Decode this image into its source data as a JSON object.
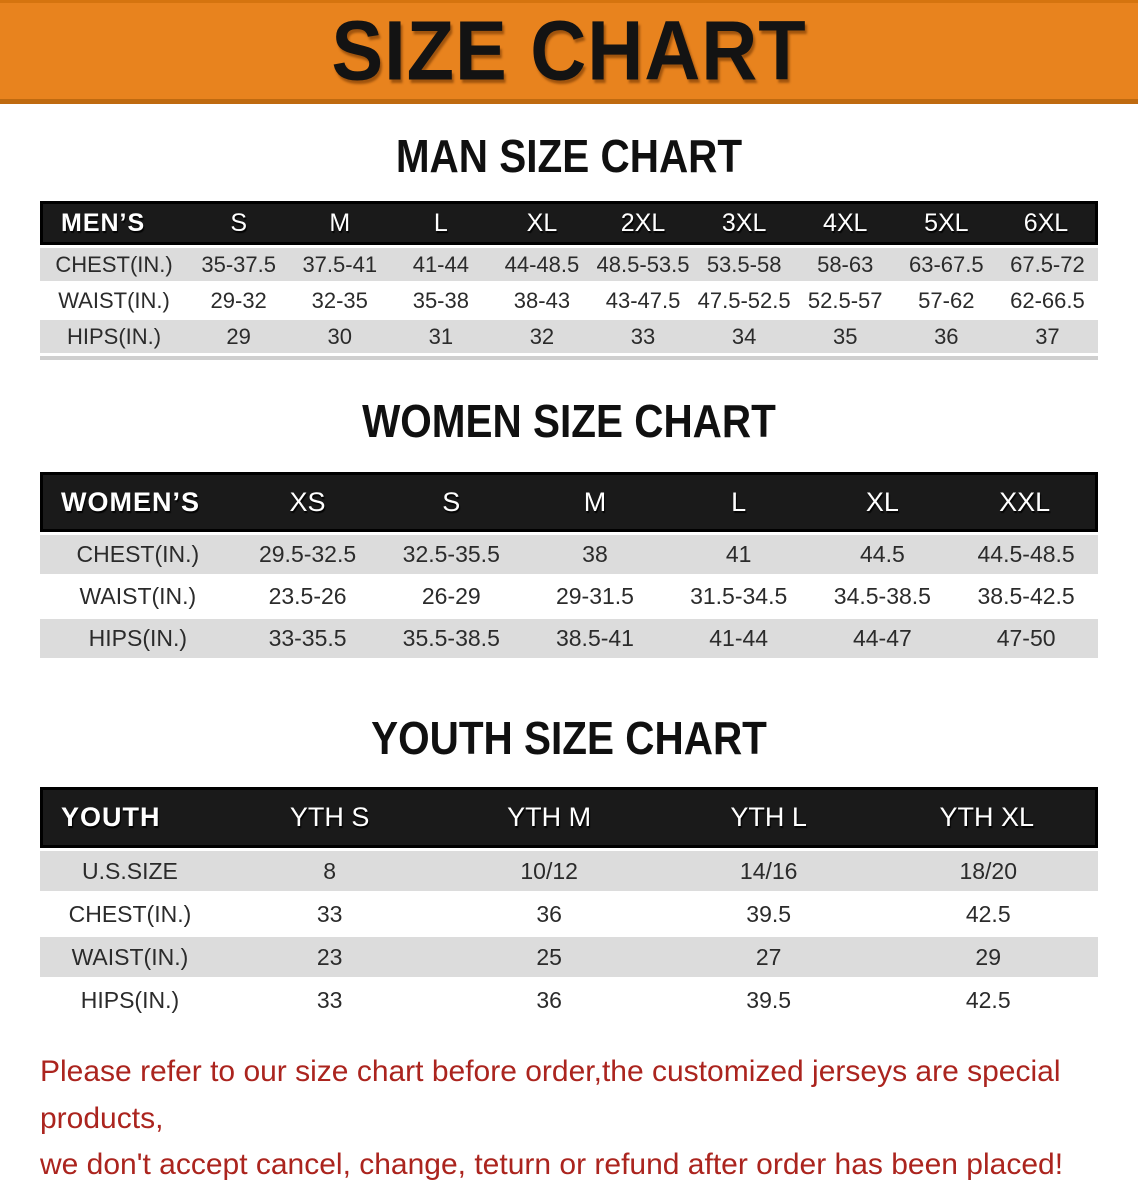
{
  "banner": {
    "title": "SIZE CHART",
    "bg_color": "#e8831e",
    "border_color": "#bf6a10"
  },
  "sections": [
    {
      "id": "men",
      "title": "MAN SIZE CHART",
      "label": "MEN’S",
      "columns": [
        "S",
        "M",
        "L",
        "XL",
        "2XL",
        "3XL",
        "4XL",
        "5XL",
        "6XL"
      ],
      "rows": [
        {
          "label": "CHEST(IN.)",
          "values": [
            "35-37.5",
            "37.5-41",
            "41-44",
            "44-48.5",
            "48.5-53.5",
            "53.5-58",
            "58-63",
            "63-67.5",
            "67.5-72"
          ]
        },
        {
          "label": "WAIST(IN.)",
          "values": [
            "29-32",
            "32-35",
            "35-38",
            "38-43",
            "43-47.5",
            "47.5-52.5",
            "52.5-57",
            "57-62",
            "62-66.5"
          ]
        },
        {
          "label": "HIPS(IN.)",
          "values": [
            "29",
            "30",
            "31",
            "32",
            "33",
            "34",
            "35",
            "36",
            "37"
          ]
        }
      ]
    },
    {
      "id": "women",
      "title": "WOMEN SIZE CHART",
      "label": "WOMEN’S",
      "columns": [
        "XS",
        "S",
        "M",
        "L",
        "XL",
        "XXL"
      ],
      "rows": [
        {
          "label": "CHEST(IN.)",
          "values": [
            "29.5-32.5",
            "32.5-35.5",
            "38",
            "41",
            "44.5",
            "44.5-48.5"
          ]
        },
        {
          "label": "WAIST(IN.)",
          "values": [
            "23.5-26",
            "26-29",
            "29-31.5",
            "31.5-34.5",
            "34.5-38.5",
            "38.5-42.5"
          ]
        },
        {
          "label": "HIPS(IN.)",
          "values": [
            "33-35.5",
            "35.5-38.5",
            "38.5-41",
            "41-44",
            "44-47",
            "47-50"
          ]
        }
      ]
    },
    {
      "id": "youth",
      "title": "YOUTH SIZE CHART",
      "label": "YOUTH",
      "columns": [
        "YTH S",
        "YTH M",
        "YTH L",
        "YTH XL"
      ],
      "rows": [
        {
          "label": "U.S.SIZE",
          "values": [
            "8",
            "10/12",
            "14/16",
            "18/20"
          ]
        },
        {
          "label": "CHEST(IN.)",
          "values": [
            "33",
            "36",
            "39.5",
            "42.5"
          ]
        },
        {
          "label": "WAIST(IN.)",
          "values": [
            "23",
            "25",
            "27",
            "29"
          ]
        },
        {
          "label": "HIPS(IN.)",
          "values": [
            "33",
            "36",
            "39.5",
            "42.5"
          ]
        }
      ]
    }
  ],
  "footer": {
    "color": "#ab241e",
    "lines": [
      "Please refer to our size chart before order,the customized jerseys are special products,",
      "we don't accept cancel, change, teturn or refund after order has been placed!"
    ]
  }
}
